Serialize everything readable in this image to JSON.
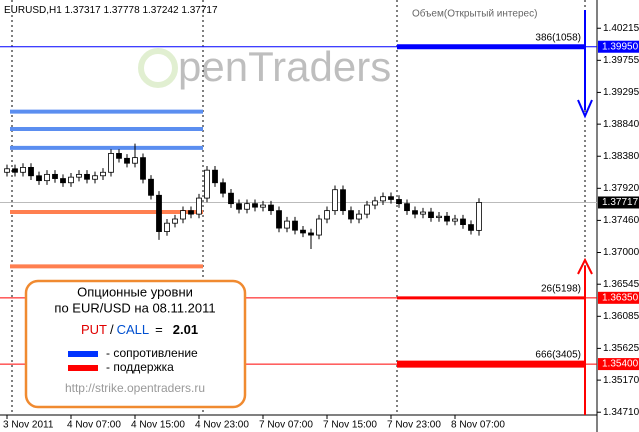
{
  "chart_data": {
    "type": "candlestick",
    "title": "EURUSD,H1",
    "volume_title": "Объем(Открытый интерес)",
    "watermark": "penTraders",
    "categories": [
      "3 Nov 2011",
      null,
      null,
      null,
      null,
      null,
      null,
      null,
      "4 Nov 07:00",
      null,
      null,
      null,
      null,
      null,
      null,
      null,
      "4 Nov 15:00",
      null,
      null,
      null,
      null,
      null,
      null,
      null,
      "4 Nov 23:00",
      null,
      null,
      null,
      null,
      null,
      null,
      null,
      "7 Nov 07:00",
      null,
      null,
      null,
      null,
      null,
      null,
      null,
      "7 Nov 15:00",
      null,
      null,
      null,
      null,
      null,
      null,
      null,
      "7 Nov 23:00",
      null,
      null,
      null,
      null,
      null,
      null,
      null,
      "8 Nov 07:00",
      null,
      null,
      null
    ],
    "open": [
      1.3815,
      1.382,
      1.3815,
      1.3822,
      1.381,
      1.3803,
      1.3812,
      1.3806,
      1.38,
      1.3808,
      1.3812,
      1.3805,
      1.381,
      1.3815,
      1.3842,
      1.3835,
      1.3828,
      1.3836,
      1.3805,
      1.3782,
      1.373,
      1.3742,
      1.3748,
      1.376,
      1.3755,
      1.3778,
      1.3818,
      1.38,
      1.3785,
      1.377,
      1.3762,
      1.377,
      1.3765,
      1.3768,
      1.376,
      1.3735,
      1.3745,
      1.3732,
      1.3728,
      1.3725,
      1.3748,
      1.376,
      1.379,
      1.376,
      1.3748,
      1.3755,
      1.3768,
      1.3774,
      1.378,
      1.3776,
      1.377,
      1.376,
      1.3755,
      1.3758,
      1.375,
      1.3752,
      1.3745,
      1.3748,
      1.374,
      1.37317
    ],
    "high": [
      1.3826,
      1.3826,
      1.3828,
      1.3828,
      1.3816,
      1.3818,
      1.3818,
      1.3812,
      1.3814,
      1.3818,
      1.3818,
      1.3816,
      1.3821,
      1.3848,
      1.3848,
      1.3841,
      1.3856,
      1.3842,
      1.3811,
      1.3788,
      1.3748,
      1.3754,
      1.3766,
      1.3766,
      1.3784,
      1.3824,
      1.3824,
      1.3806,
      1.3791,
      1.3776,
      1.3776,
      1.3776,
      1.3774,
      1.3774,
      1.3766,
      1.3751,
      1.3751,
      1.3738,
      1.3734,
      1.3754,
      1.3766,
      1.3796,
      1.3796,
      1.3766,
      1.3761,
      1.3774,
      1.378,
      1.3786,
      1.3786,
      1.3782,
      1.3776,
      1.3766,
      1.3764,
      1.3764,
      1.3758,
      1.3758,
      1.3754,
      1.3754,
      1.3746,
      1.37778
    ],
    "low": [
      1.3809,
      1.3809,
      1.3809,
      1.3804,
      1.3797,
      1.3797,
      1.38,
      1.3794,
      1.3794,
      1.3802,
      1.3799,
      1.3799,
      1.3804,
      1.3809,
      1.3829,
      1.3822,
      1.3822,
      1.3799,
      1.3776,
      1.3718,
      1.3724,
      1.3736,
      1.3742,
      1.3749,
      1.3749,
      1.3772,
      1.3794,
      1.3779,
      1.3764,
      1.3756,
      1.3756,
      1.3759,
      1.3759,
      1.3754,
      1.3729,
      1.3729,
      1.3726,
      1.3722,
      1.3705,
      1.3719,
      1.3742,
      1.3754,
      1.3754,
      1.3742,
      1.3742,
      1.3749,
      1.3762,
      1.3768,
      1.377,
      1.3764,
      1.3754,
      1.3749,
      1.3749,
      1.3744,
      1.3744,
      1.3739,
      1.3739,
      1.3734,
      1.37257,
      1.37242
    ],
    "close": [
      1.382,
      1.3815,
      1.3822,
      1.381,
      1.3803,
      1.3812,
      1.3806,
      1.38,
      1.3808,
      1.3812,
      1.3805,
      1.381,
      1.3815,
      1.3842,
      1.3835,
      1.3828,
      1.3836,
      1.3805,
      1.3782,
      1.373,
      1.3742,
      1.3748,
      1.376,
      1.3755,
      1.3778,
      1.3818,
      1.38,
      1.3785,
      1.377,
      1.3762,
      1.377,
      1.3765,
      1.3768,
      1.376,
      1.3735,
      1.3745,
      1.3732,
      1.3728,
      1.3725,
      1.3748,
      1.376,
      1.379,
      1.376,
      1.3748,
      1.3755,
      1.3768,
      1.3774,
      1.378,
      1.3776,
      1.377,
      1.376,
      1.3755,
      1.3758,
      1.375,
      1.3752,
      1.3745,
      1.3748,
      1.374,
      1.37317,
      1.37717
    ],
    "ylim": [
      1.3467,
      1.4062
    ],
    "yticks": [
      1.40215,
      1.39755,
      1.39295,
      {
        "value": 1.3884,
        "label": "1.38840"
      },
      {
        "value": 1.3838,
        "label": "1.38380"
      },
      {
        "value": 1.3792,
        "label": "1.37920"
      },
      {
        "value": 1.3746,
        "label": "1.37460"
      },
      {
        "value": 1.37,
        "label": "1.37000"
      },
      1.36545,
      1.36085,
      1.35625,
      {
        "value": 1.3517,
        "label": "1.35170"
      },
      {
        "value": 1.3471,
        "label": "1.34710"
      }
    ],
    "option_levels": {
      "values": [
        1.3995,
        1.3635,
        1.354
      ],
      "value_labels": [
        "1.39950",
        "1.36350",
        "1.35400"
      ],
      "annotations": [
        "386(1058)",
        "26(5198)",
        "666(3405)"
      ],
      "colors": [
        "#0000ff",
        "#ff0000",
        "#ff0000"
      ]
    },
    "resistance_levels": {
      "values": [
        1.3902,
        1.3877,
        1.385
      ],
      "color": "#5b8ef0"
    },
    "support_levels": {
      "values": [
        1.3758,
        1.368
      ],
      "color": "#ff7f50"
    },
    "info": {
      "title": "Опционные уровни",
      "subtitle": "по EUR/USD на  08.11.2011",
      "put": "PUT",
      "slash": "/",
      "call": "CALL",
      "equals": "=",
      "put_call_ratio": 2.01,
      "legend": [
        {
          "name": "- сопротивление",
          "color": "#0033ff"
        },
        {
          "name": "- поддержка",
          "color": "#ff0000"
        }
      ],
      "url": "http://strike.opentraders.ru"
    }
  }
}
